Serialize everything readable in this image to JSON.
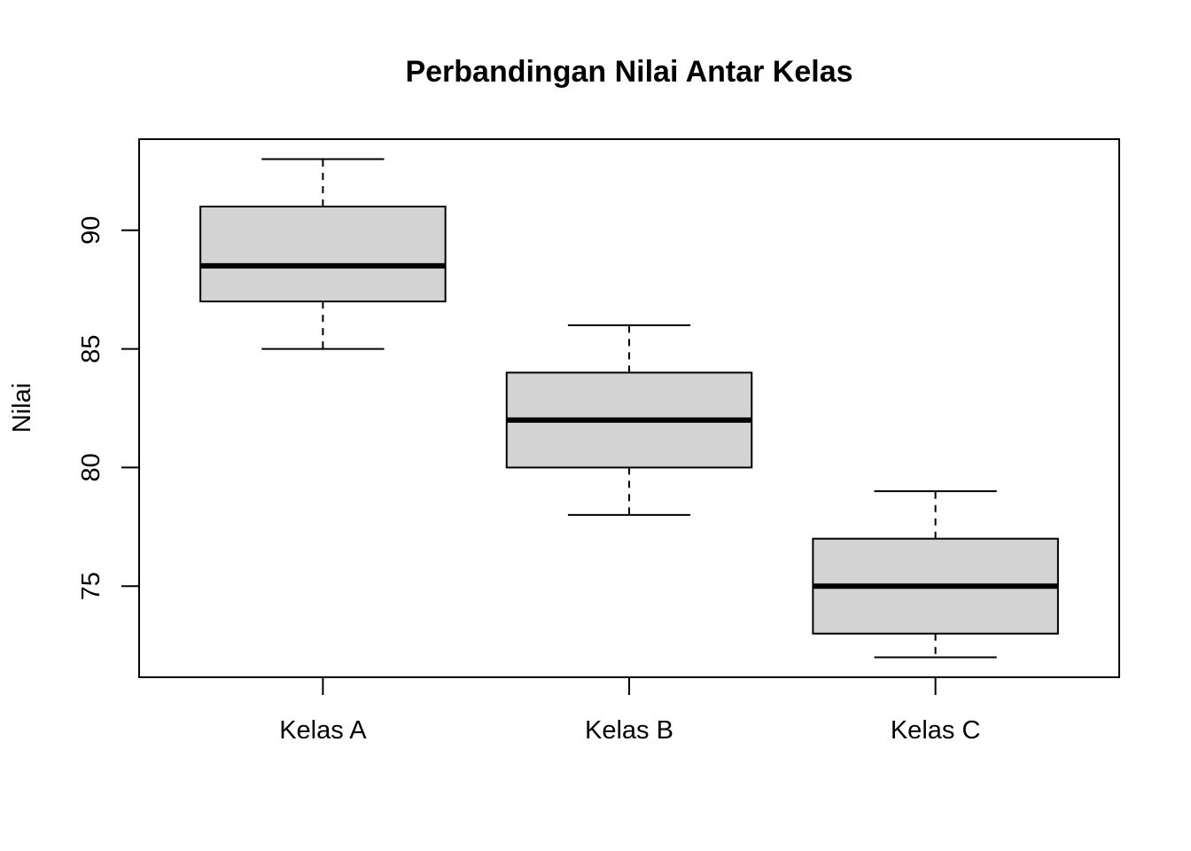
{
  "chart_data": {
    "type": "boxplot",
    "title": "Perbandingan Nilai Antar Kelas",
    "xlabel": "",
    "ylabel": "Nilai",
    "categories": [
      "Kelas A",
      "Kelas B",
      "Kelas C"
    ],
    "boxes": [
      {
        "category": "Kelas A",
        "min": 85,
        "q1": 87,
        "median": 88.5,
        "q3": 91,
        "max": 93
      },
      {
        "category": "Kelas B",
        "min": 78,
        "q1": 80,
        "median": 82,
        "q3": 84,
        "max": 86
      },
      {
        "category": "Kelas C",
        "min": 72,
        "q1": 73,
        "median": 75,
        "q3": 77,
        "max": 79
      }
    ],
    "yticks": [
      75,
      80,
      85,
      90
    ],
    "ylim": [
      71.16,
      93.84
    ],
    "grid": false,
    "colors": {
      "box_fill": "#d3d3d3",
      "stroke": "#000000"
    }
  }
}
